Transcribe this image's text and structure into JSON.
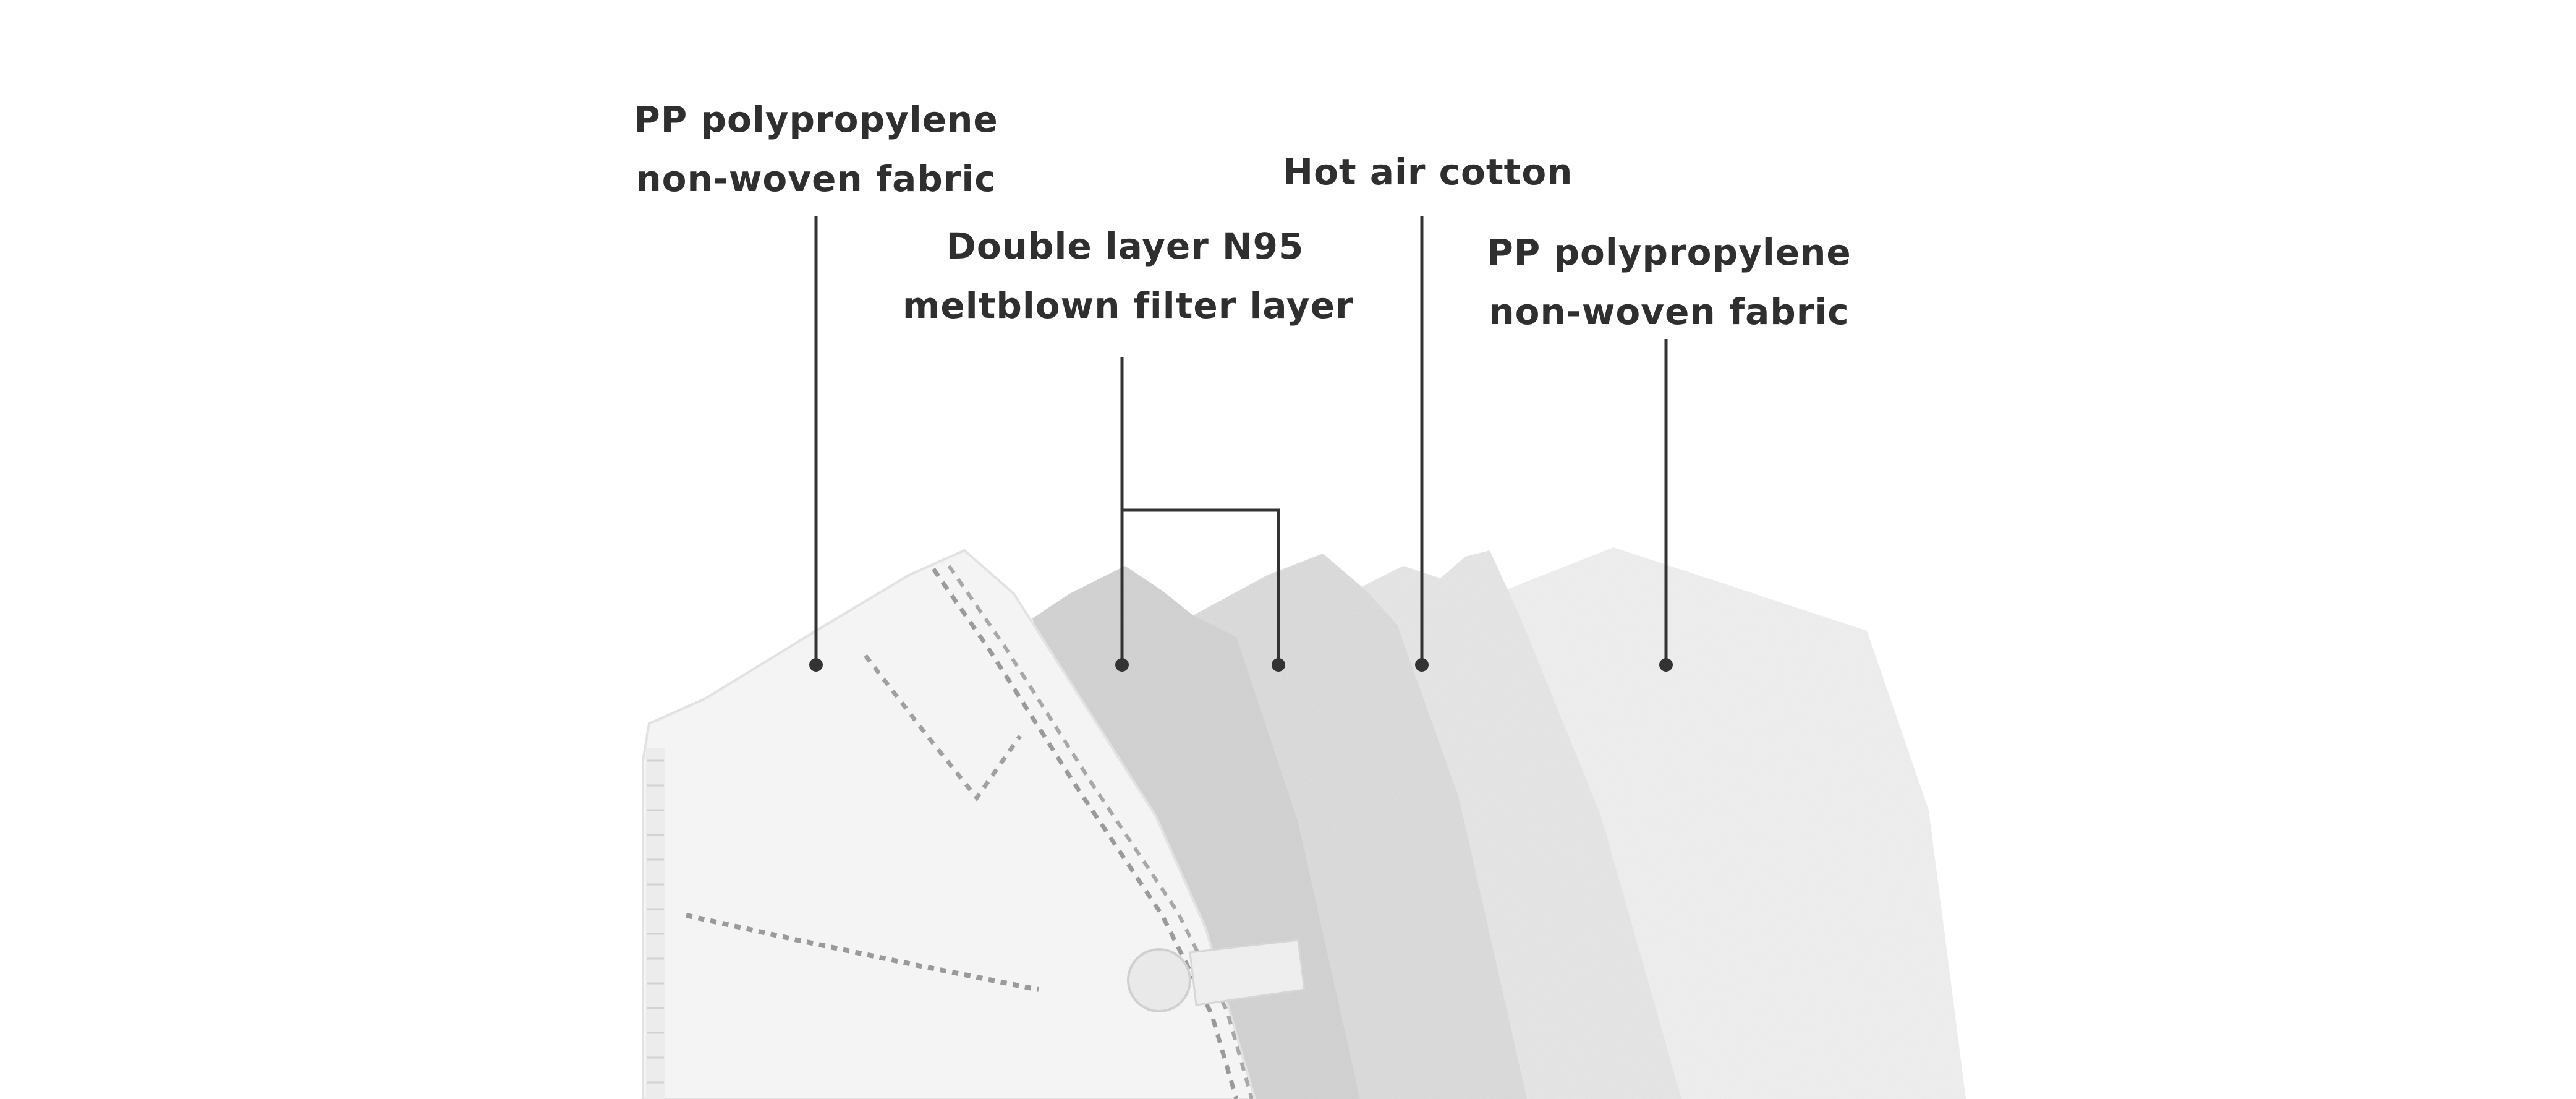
{
  "labels": {
    "outer_layer": {
      "line1": "PP polypropylene",
      "line2": "non-woven fabric"
    },
    "meltblown_layer": {
      "line1": "Double layer N95",
      "line2": "meltblown filter layer"
    },
    "hot_air_layer": {
      "line1": "Hot air cotton"
    },
    "inner_layer": {
      "line1": "PP polypropylene",
      "line2": "non-woven fabric"
    }
  },
  "colors": {
    "background": "#ffffff",
    "text": "#2f2f2f",
    "leader_line": "#333333",
    "outer_layer": "#f4f4f4",
    "meltblown_front": "#d3d3d3",
    "meltblown_back": "#dcdcdc",
    "hot_air": "#e6e6e6",
    "inner": "#efefef"
  },
  "icons": {
    "mask_outer_layer": "mask-outer-layer-icon"
  }
}
